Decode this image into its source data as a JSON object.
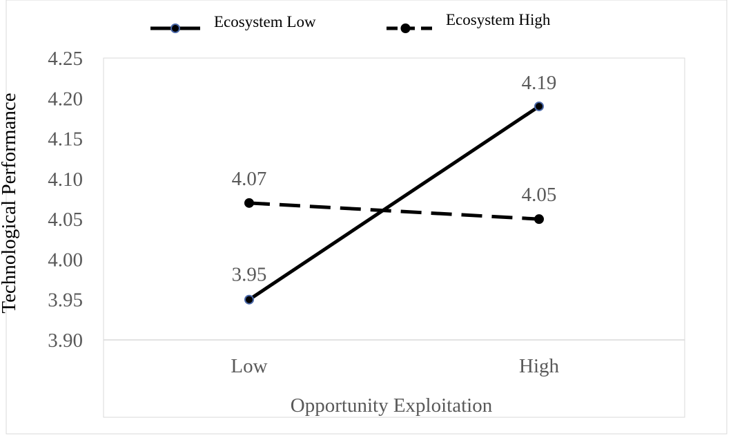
{
  "chart_data": {
    "type": "line",
    "categories": [
      "Low",
      "High"
    ],
    "series": [
      {
        "name": "Ecosystem Low",
        "values": [
          3.95,
          4.19
        ],
        "labels": [
          "3.95",
          "4.19"
        ],
        "line_style": "solid",
        "marker_fill": "#000000",
        "marker_edge": "#4a68a8"
      },
      {
        "name": "Ecosystem High",
        "values": [
          4.07,
          4.05
        ],
        "labels": [
          "4.07",
          "4.05"
        ],
        "line_style": "dashed",
        "marker_fill": "#000000",
        "marker_edge": "#000000"
      }
    ],
    "xlabel": "Opportunity Exploitation",
    "ylabel": "Technological Performance",
    "ylim": [
      3.9,
      4.25
    ],
    "yticks": [
      "3.90",
      "3.95",
      "4.00",
      "4.05",
      "4.10",
      "4.15",
      "4.20",
      "4.25"
    ],
    "legend_position": "top",
    "grid": false,
    "colors": {
      "line": "#000000",
      "axis_text": "#595959",
      "axis_line": "#d9d9d9",
      "title_text": "#000000"
    }
  }
}
